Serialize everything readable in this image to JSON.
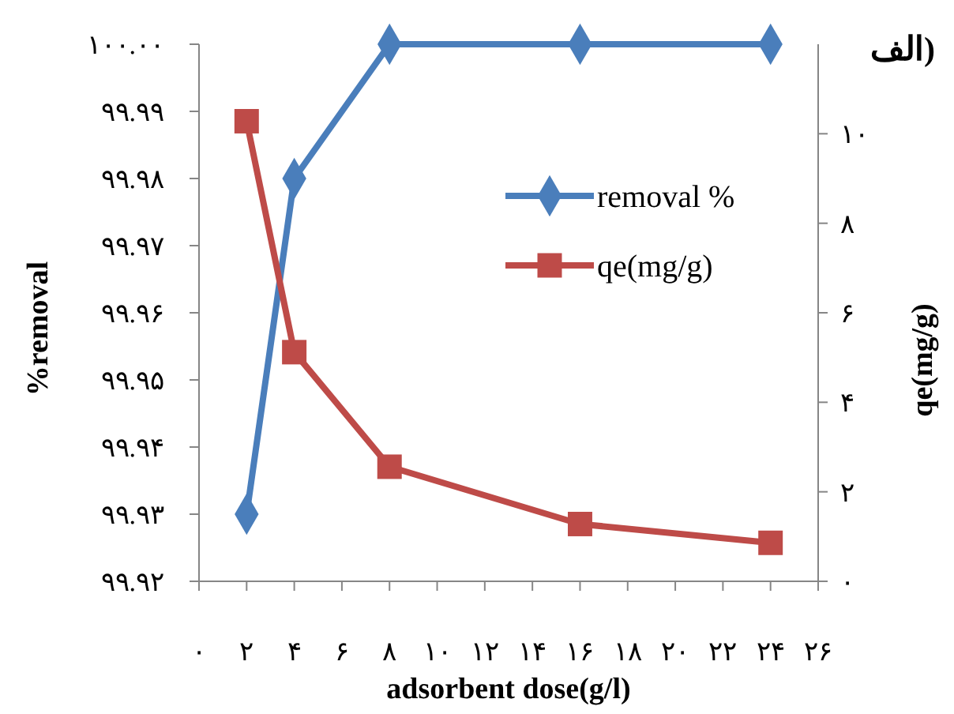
{
  "chart_data": {
    "type": "line",
    "xlabel": "adsorbent dose(g/l)",
    "ylabel": "%removal",
    "y2label": "qe(mg/g)",
    "annotations": [
      "الف)"
    ],
    "x": [
      2,
      4,
      8,
      16,
      24
    ],
    "series": [
      {
        "name": "removal %",
        "color": "#4a7ebb",
        "marker": "diamond",
        "values": [
          99.93,
          99.98,
          100.0,
          100.0,
          100.0
        ]
      },
      {
        "name": "qe(mg/g)",
        "color": "#be4b48",
        "marker": "square",
        "axis": "y2",
        "values": [
          10.28,
          5.12,
          2.56,
          1.28,
          0.86
        ]
      }
    ],
    "xlim": [
      0,
      26
    ],
    "xticks": [
      {
        "value": 0,
        "label": "۰"
      },
      {
        "value": 2,
        "label": "۲"
      },
      {
        "value": 4,
        "label": "۴"
      },
      {
        "value": 6,
        "label": "۶"
      },
      {
        "value": 8,
        "label": "۸"
      },
      {
        "value": 10,
        "label": "۱۰"
      },
      {
        "value": 12,
        "label": "۱۲"
      },
      {
        "value": 14,
        "label": "۱۴"
      },
      {
        "value": 16,
        "label": "۱۶"
      },
      {
        "value": 18,
        "label": "۱۸"
      },
      {
        "value": 20,
        "label": "۲۰"
      },
      {
        "value": 22,
        "label": "۲۲"
      },
      {
        "value": 24,
        "label": "۲۴"
      },
      {
        "value": 26,
        "label": "۲۶"
      }
    ],
    "ylim": [
      99.92,
      100.0
    ],
    "yticks": [
      {
        "value": 99.92,
        "label": "۹۹.۹۲"
      },
      {
        "value": 99.93,
        "label": "۹۹.۹۳"
      },
      {
        "value": 99.94,
        "label": "۹۹.۹۴"
      },
      {
        "value": 99.95,
        "label": "۹۹.۹۵"
      },
      {
        "value": 99.96,
        "label": "۹۹.۹۶"
      },
      {
        "value": 99.97,
        "label": "۹۹.۹۷"
      },
      {
        "value": 99.98,
        "label": "۹۹.۹۸"
      },
      {
        "value": 99.99,
        "label": "۹۹.۹۹"
      },
      {
        "value": 100.0,
        "label": "۱۰۰.۰۰"
      }
    ],
    "y2lim": [
      0,
      12
    ],
    "y2ticks": [
      {
        "value": 0,
        "label": "۰"
      },
      {
        "value": 2,
        "label": "۲"
      },
      {
        "value": 4,
        "label": "۴"
      },
      {
        "value": 6,
        "label": "۶"
      },
      {
        "value": 8,
        "label": "۸"
      },
      {
        "value": 10,
        "label": "۱۰"
      }
    ],
    "grid": false,
    "legend": "top right",
    "line_style": "solid"
  }
}
